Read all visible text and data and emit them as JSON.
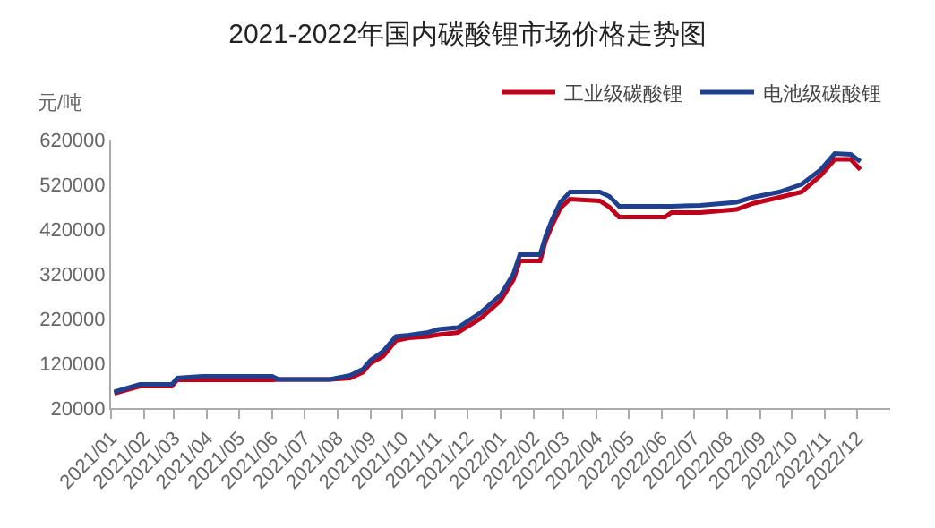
{
  "chart_data": {
    "type": "line",
    "title": "2021-2022年国内碳酸锂市场价格走势图",
    "ylabel": "元/吨",
    "x": [
      "2021-01-04",
      "2021-01-28",
      "2021-02-27",
      "2021-03-04",
      "2021-03-28",
      "2021-06-01",
      "2021-06-07",
      "2021-07-25",
      "2021-08-13",
      "2021-08-25",
      "2021-09-01",
      "2021-09-13",
      "2021-09-25",
      "2021-10-07",
      "2021-10-25",
      "2021-11-04",
      "2021-11-22",
      "2021-12-13",
      "2022-01-01",
      "2022-01-13",
      "2022-01-19",
      "2022-02-07",
      "2022-02-12",
      "2022-02-18",
      "2022-02-26",
      "2022-03-07",
      "2022-04-04",
      "2022-04-13",
      "2022-04-22",
      "2022-06-04",
      "2022-06-10",
      "2022-07-07",
      "2022-08-10",
      "2022-08-25",
      "2022-09-19",
      "2022-10-10",
      "2022-10-28",
      "2022-11-10",
      "2022-11-25",
      "2022-12-04"
    ],
    "series": [
      {
        "name": "工业级碳酸锂",
        "color": "#c0001a",
        "values": [
          53000,
          69000,
          69000,
          83000,
          83000,
          83000,
          84000,
          84000,
          87000,
          100000,
          120000,
          136000,
          171000,
          177000,
          180000,
          184000,
          189000,
          220000,
          260000,
          307000,
          349000,
          349000,
          393000,
          427000,
          467000,
          487000,
          483000,
          469000,
          447000,
          447000,
          457000,
          457000,
          464000,
          477000,
          491000,
          503000,
          540000,
          576000,
          576000,
          553000
        ]
      },
      {
        "name": "电池级碳酸锂",
        "color": "#1f3f8f",
        "values": [
          56000,
          73000,
          73000,
          87000,
          91000,
          91000,
          84000,
          84000,
          93000,
          107000,
          127000,
          147000,
          180000,
          183000,
          189000,
          196000,
          200000,
          233000,
          273000,
          320000,
          363000,
          363000,
          403000,
          440000,
          480000,
          503000,
          503000,
          493000,
          471000,
          471000,
          471000,
          473000,
          480000,
          491000,
          503000,
          520000,
          553000,
          589000,
          587000,
          571000
        ]
      }
    ],
    "xlim": [
      "2021-01-01",
      "2023-01-01"
    ],
    "xticks": [
      {
        "value": "2021-01-01",
        "label": "2021/01"
      },
      {
        "value": "2021-02-01",
        "label": "2021/02"
      },
      {
        "value": "2021-03-01",
        "label": "2021/03"
      },
      {
        "value": "2021-04-01",
        "label": "2021/04"
      },
      {
        "value": "2021-05-01",
        "label": "2021/05"
      },
      {
        "value": "2021-06-01",
        "label": "2021/06"
      },
      {
        "value": "2021-07-01",
        "label": "2021/07"
      },
      {
        "value": "2021-08-01",
        "label": "2021/08"
      },
      {
        "value": "2021-09-01",
        "label": "2021/09"
      },
      {
        "value": "2021-10-01",
        "label": "2021/10"
      },
      {
        "value": "2021-11-01",
        "label": "2021/11"
      },
      {
        "value": "2021-12-01",
        "label": "2021/12"
      },
      {
        "value": "2022-01-01",
        "label": "2022/01"
      },
      {
        "value": "2022-02-01",
        "label": "2022/02"
      },
      {
        "value": "2022-03-01",
        "label": "2022/03"
      },
      {
        "value": "2022-04-01",
        "label": "2022/04"
      },
      {
        "value": "2022-05-01",
        "label": "2022/05"
      },
      {
        "value": "2022-06-01",
        "label": "2022/06"
      },
      {
        "value": "2022-07-01",
        "label": "2022/07"
      },
      {
        "value": "2022-08-01",
        "label": "2022/08"
      },
      {
        "value": "2022-09-01",
        "label": "2022/09"
      },
      {
        "value": "2022-10-01",
        "label": "2022/10"
      },
      {
        "value": "2022-11-01",
        "label": "2022/11"
      },
      {
        "value": "2022-12-01",
        "label": "2022/12"
      }
    ],
    "ylim": [
      20000,
      620000
    ],
    "yticks": [
      20000,
      120000,
      220000,
      320000,
      420000,
      520000,
      620000
    ],
    "legend": "top right",
    "marker": "none",
    "line_style": "solid"
  }
}
